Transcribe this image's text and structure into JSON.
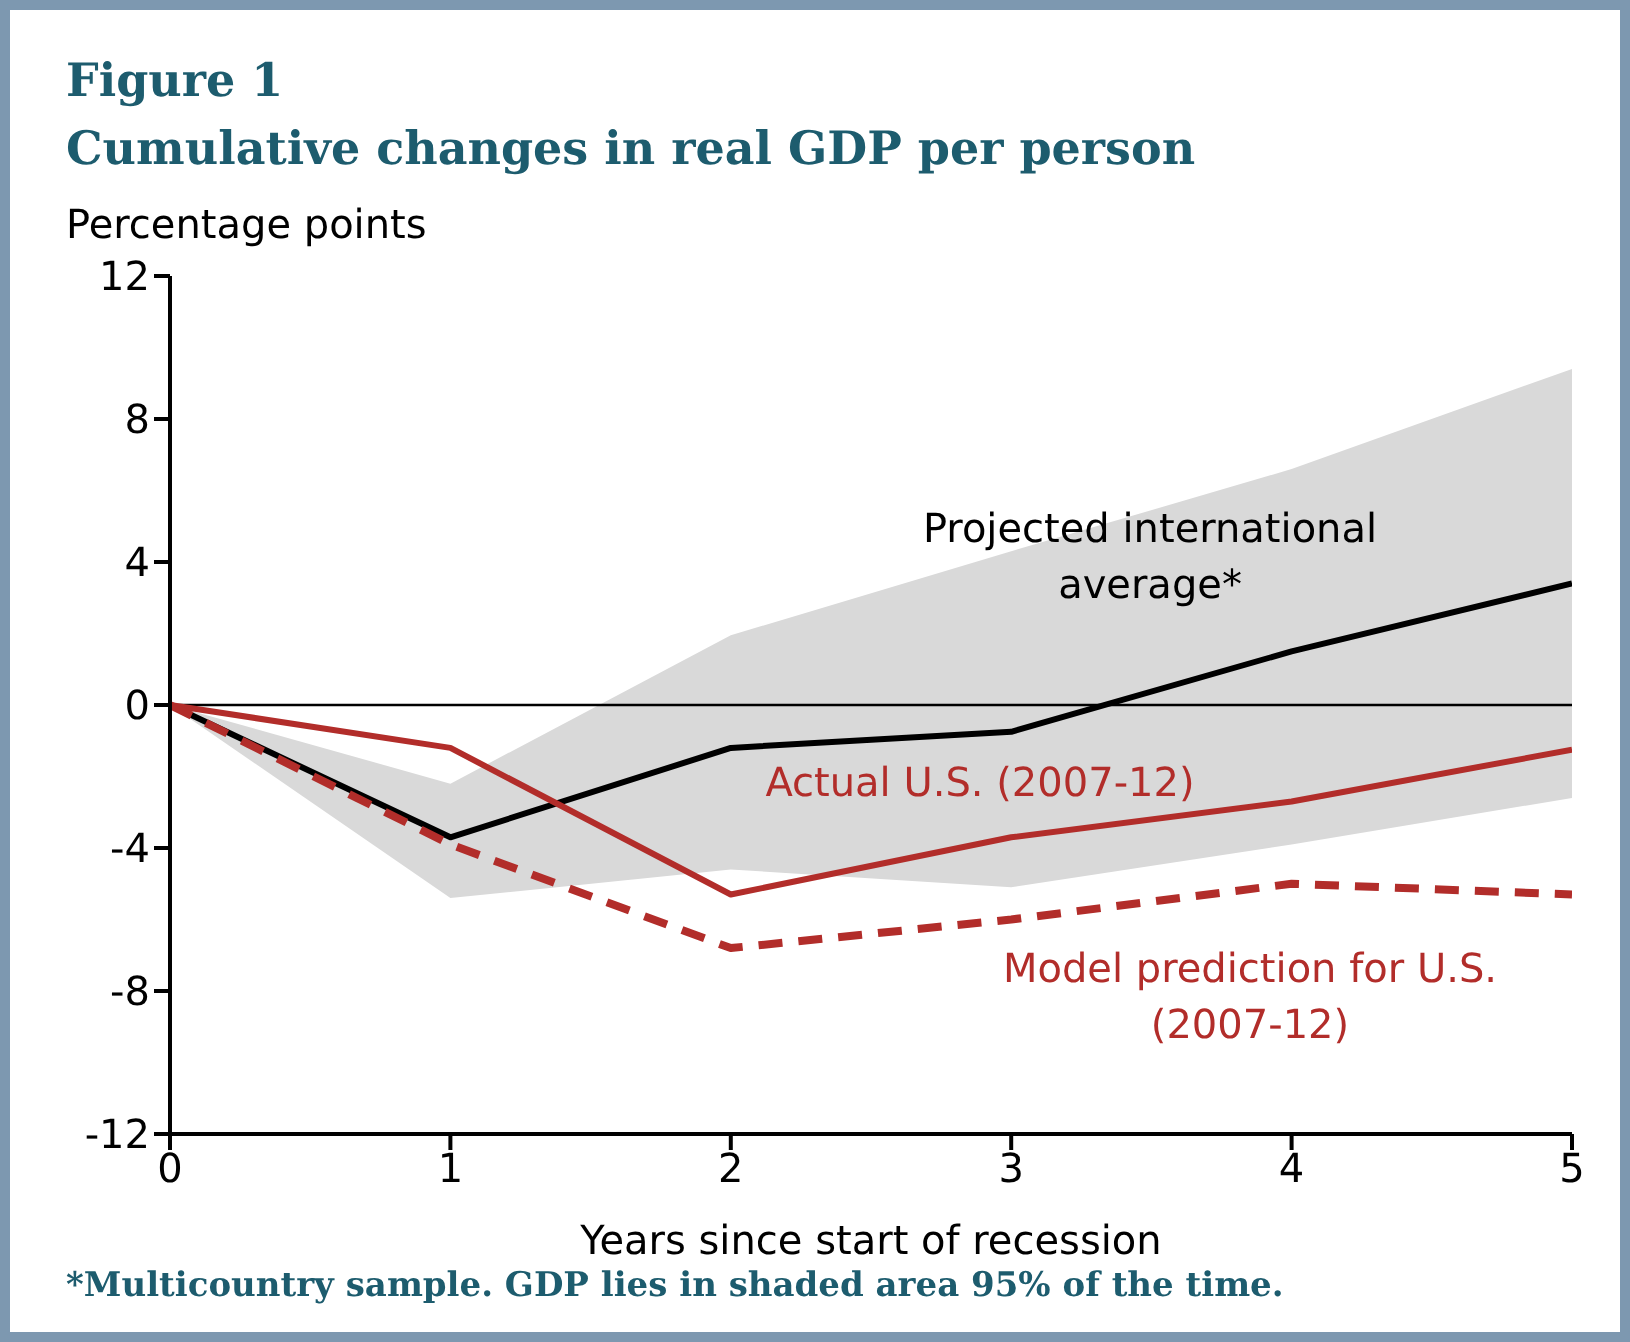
{
  "chart_data": {
    "type": "line",
    "title": "Figure 1",
    "subtitle": "Cumulative changes in real GDP per person",
    "ylabel": "Percentage points",
    "xlabel": "Years since start of recession",
    "annotations": [
      "*Multicountry sample. GDP lies in shaded area 95% of the time."
    ],
    "x": [
      0,
      1,
      2,
      3,
      4,
      5
    ],
    "series": [
      {
        "name": "Projected international average*",
        "color": "#000000",
        "values": [
          0,
          -3.7,
          -1.2,
          -0.75,
          1.5,
          3.4
        ],
        "lower": [
          0,
          -5.4,
          -4.6,
          -5.1,
          -3.9,
          -2.6
        ],
        "upper": [
          0,
          -2.2,
          1.95,
          4.3,
          6.6,
          9.4
        ]
      },
      {
        "name": "Actual U.S. (2007-12)",
        "color": "#b22d2a",
        "values": [
          0,
          -1.2,
          -5.3,
          -3.7,
          -2.7,
          -1.25
        ]
      },
      {
        "name": "Model prediction for U.S. (2007-12)",
        "color": "#b22d2a",
        "values": [
          0,
          -3.9,
          -6.8,
          -6.0,
          -5.0,
          -5.3
        ],
        "line_style": "dashed"
      }
    ],
    "xlim": [
      0,
      5
    ],
    "xticks": [
      0,
      1,
      2,
      3,
      4,
      5
    ],
    "ylim": [
      -12,
      12
    ],
    "yticks": [
      -12,
      -8,
      -4,
      0,
      4,
      8,
      12
    ],
    "ref_lines": [
      {
        "axis": "y",
        "value": 0,
        "color": "#000000"
      }
    ],
    "grid": false,
    "legend": false,
    "marker": "none"
  }
}
